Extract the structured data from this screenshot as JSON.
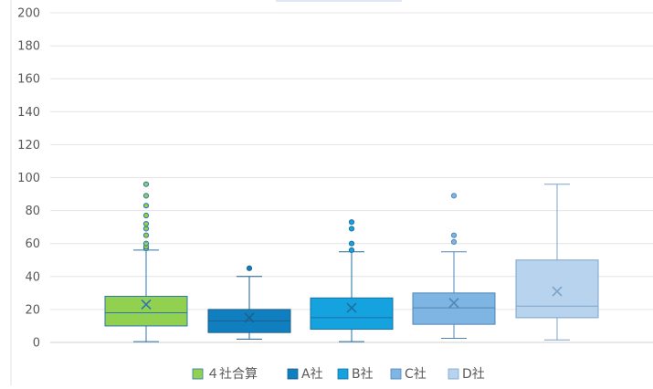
{
  "chart_data": {
    "type": "box",
    "ylim": [
      0,
      200
    ],
    "y_ticks": [
      "0",
      "20",
      "40",
      "60",
      "80",
      "100",
      "120",
      "140",
      "160",
      "180",
      "200"
    ],
    "grid": true,
    "legend_position": "bottom",
    "series": [
      {
        "name": "４社合算",
        "color": "#92d050",
        "stroke": "#2e75b6",
        "min": 0.5,
        "q1": 10,
        "median": 18,
        "q3": 28,
        "max": 56,
        "mean": 23,
        "outliers": [
          57,
          58,
          60,
          65,
          69,
          72,
          77,
          83,
          89,
          96
        ]
      },
      {
        "name": "A社",
        "color": "#0f7fbf",
        "stroke": "#1f5f8b",
        "min": 2,
        "q1": 6,
        "median": 13,
        "q3": 20,
        "max": 40,
        "mean": 15,
        "outliers": [
          45
        ]
      },
      {
        "name": "B社",
        "color": "#15a3e0",
        "stroke": "#1f6fa0",
        "min": 0.5,
        "q1": 8,
        "median": 15,
        "q3": 27,
        "max": 55,
        "mean": 21,
        "outliers": [
          56,
          60,
          69,
          73
        ]
      },
      {
        "name": "C社",
        "color": "#7fb5e3",
        "stroke": "#4f86b8",
        "min": 2.5,
        "q1": 11,
        "median": 21,
        "q3": 30,
        "max": 55,
        "mean": 24,
        "outliers": [
          61,
          65,
          89
        ]
      },
      {
        "name": "D社",
        "color": "#b8d3ee",
        "stroke": "#7fa3c8",
        "min": 1.5,
        "q1": 15,
        "median": 22,
        "q3": 50,
        "max": 96,
        "mean": 31,
        "outliers": []
      }
    ]
  }
}
